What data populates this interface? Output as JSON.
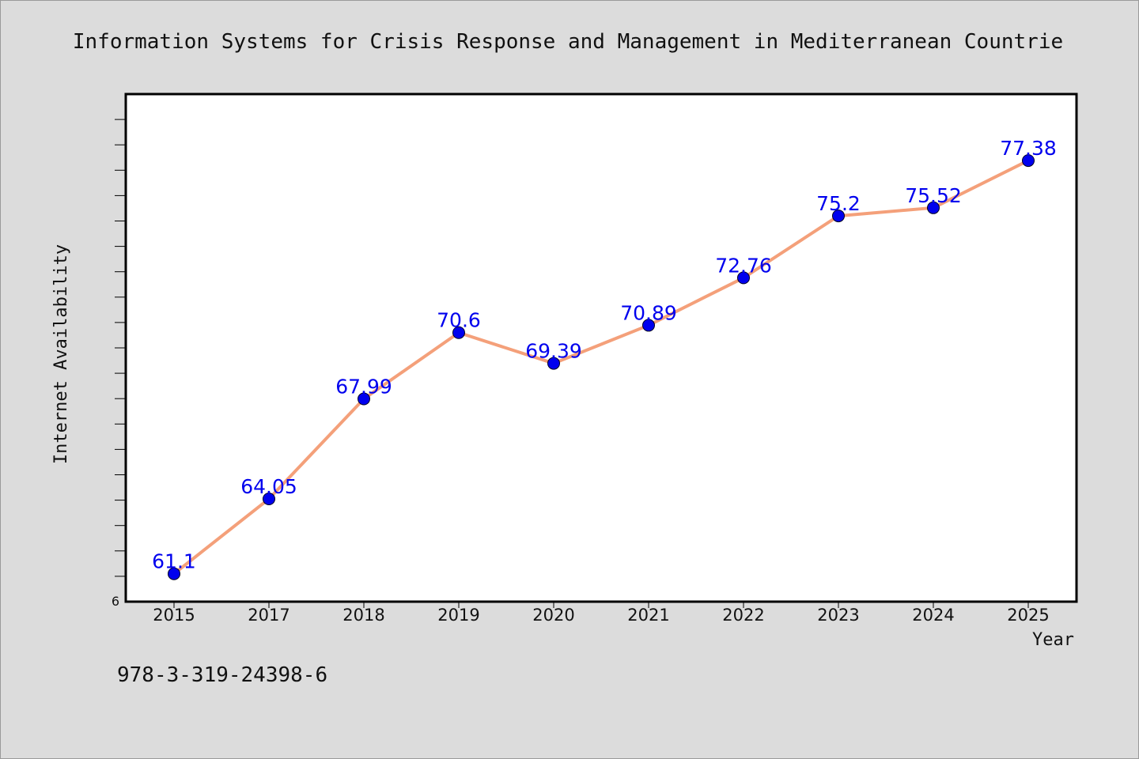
{
  "chart_data": {
    "type": "line",
    "title": "Information Systems for Crisis Response and Management in Mediterranean Countrie",
    "xlabel": "Year",
    "ylabel": "Internet Availability",
    "categories": [
      "2015",
      "2017",
      "2018",
      "2019",
      "2020",
      "2021",
      "2022",
      "2023",
      "2024",
      "2025"
    ],
    "series": [
      {
        "values": [
          61.1,
          64.05,
          67.99,
          70.6,
          69.39,
          70.89,
          72.76,
          75.2,
          75.52,
          77.38
        ],
        "labels": [
          "61.1",
          "64.05",
          "67.99",
          "70.6",
          "69.39",
          "70.89",
          "72.76",
          "75.2",
          "75.52",
          "77.38"
        ]
      }
    ],
    "ylim": [
      60,
      80
    ],
    "yticks_labeled": [
      "6"
    ],
    "grid": false,
    "line_color": "#f4a07a",
    "marker_color": "#0000ee",
    "label_color": "#0000ee"
  },
  "footer_text": "978-3-319-24398-6",
  "colors": {
    "background": "#dcdcdc",
    "plot_background": "#ffffff"
  }
}
